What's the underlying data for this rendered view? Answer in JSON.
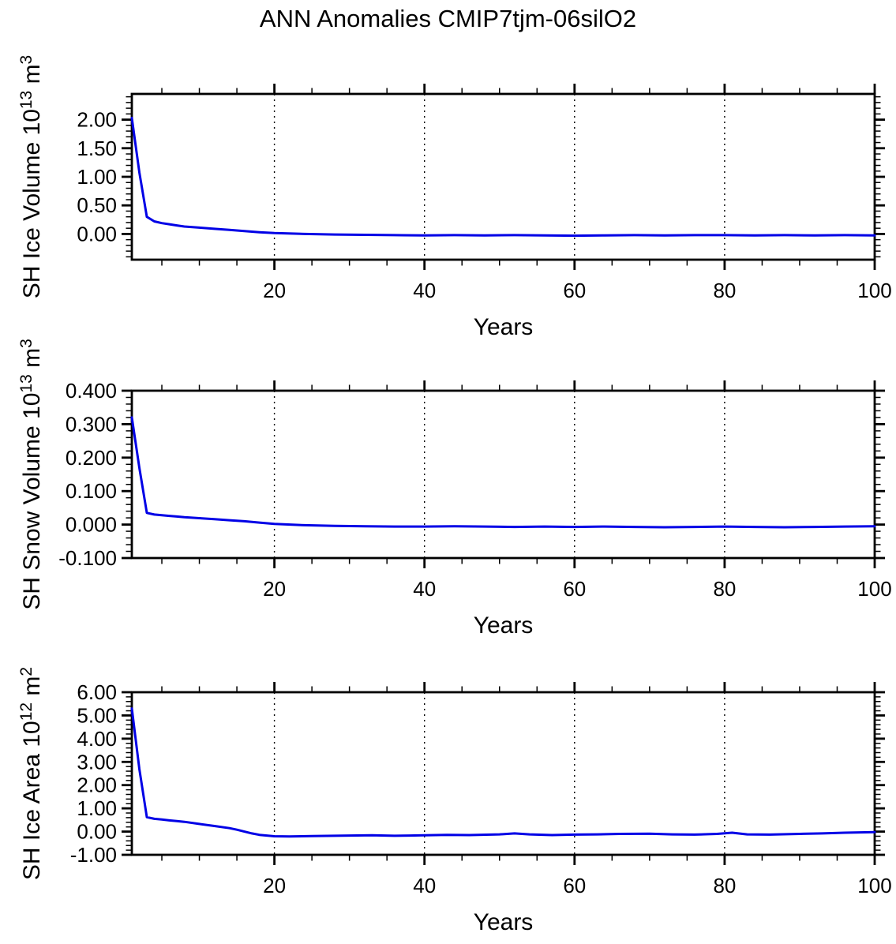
{
  "title": "ANN Anomalies CMIP7tjm-06silO2",
  "colors": {
    "line": "#0000e6",
    "frame": "#000000",
    "grid": "#000000",
    "background": "#ffffff"
  },
  "chart_data": [
    {
      "type": "line",
      "name": "sh-ice-volume-plot",
      "ylabel": "SH Ice Volume 10^13 m^3",
      "ylabel_parts": [
        {
          "t": "SH Ice Volume 10"
        },
        {
          "t": "13",
          "sup": true
        },
        {
          "t": " m"
        },
        {
          "t": "3",
          "sup": true
        }
      ],
      "xlabel": "Years",
      "xlim": [
        1,
        100
      ],
      "ylim": [
        -0.45,
        2.45
      ],
      "x_ticks": [
        {
          "v": 20,
          "label": "20"
        },
        {
          "v": 40,
          "label": "40"
        },
        {
          "v": 60,
          "label": "60"
        },
        {
          "v": 80,
          "label": "80"
        },
        {
          "v": 100,
          "label": "100"
        }
      ],
      "x_minor_step": 5,
      "y_ticks": [
        {
          "v": 2.0,
          "label": "2.00"
        },
        {
          "v": 1.5,
          "label": "1.50"
        },
        {
          "v": 1.0,
          "label": "1.00"
        },
        {
          "v": 0.5,
          "label": "0.50"
        },
        {
          "v": 0.0,
          "label": "0.00"
        }
      ],
      "y_minor_step": 0.1,
      "grid_x": [
        20,
        40,
        60,
        80,
        100
      ],
      "grid_style": "dashed",
      "series": {
        "name": "SH Ice Volume anomaly",
        "x": [
          1,
          2,
          3,
          4,
          5,
          6,
          7,
          8,
          10,
          12,
          14,
          16,
          18,
          20,
          24,
          28,
          32,
          36,
          40,
          44,
          48,
          52,
          56,
          60,
          64,
          68,
          72,
          76,
          80,
          84,
          88,
          92,
          96,
          100
        ],
        "y": [
          2.03,
          1.08,
          0.3,
          0.22,
          0.19,
          0.17,
          0.15,
          0.13,
          0.11,
          0.09,
          0.07,
          0.05,
          0.03,
          0.015,
          0.0,
          -0.01,
          -0.015,
          -0.02,
          -0.025,
          -0.02,
          -0.025,
          -0.02,
          -0.025,
          -0.03,
          -0.025,
          -0.02,
          -0.025,
          -0.02,
          -0.02,
          -0.025,
          -0.02,
          -0.025,
          -0.02,
          -0.025
        ]
      }
    },
    {
      "type": "line",
      "name": "sh-snow-volume-plot",
      "ylabel": "SH Snow Volume 10^13 m^3",
      "ylabel_parts": [
        {
          "t": "SH Snow Volume 10"
        },
        {
          "t": "13",
          "sup": true
        },
        {
          "t": " m"
        },
        {
          "t": "3",
          "sup": true
        }
      ],
      "xlabel": "Years",
      "xlim": [
        1,
        100
      ],
      "ylim": [
        -0.1,
        0.4
      ],
      "x_ticks": [
        {
          "v": 20,
          "label": "20"
        },
        {
          "v": 40,
          "label": "40"
        },
        {
          "v": 60,
          "label": "60"
        },
        {
          "v": 80,
          "label": "80"
        },
        {
          "v": 100,
          "label": "100"
        }
      ],
      "x_minor_step": 5,
      "y_ticks": [
        {
          "v": 0.4,
          "label": "0.400"
        },
        {
          "v": 0.3,
          "label": "0.300"
        },
        {
          "v": 0.2,
          "label": "0.200"
        },
        {
          "v": 0.1,
          "label": "0.100"
        },
        {
          "v": 0.0,
          "label": "0.000"
        },
        {
          "v": -0.1,
          "label": "-0.100"
        }
      ],
      "y_minor_step": 0.02,
      "grid_x": [
        20,
        40,
        60,
        80,
        100
      ],
      "grid_style": "dashed",
      "series": {
        "name": "SH Snow Volume anomaly",
        "x": [
          1,
          2,
          3,
          4,
          5,
          6,
          7,
          8,
          10,
          12,
          14,
          16,
          18,
          20,
          24,
          28,
          32,
          36,
          40,
          44,
          48,
          52,
          56,
          60,
          64,
          68,
          72,
          76,
          80,
          84,
          88,
          92,
          96,
          100
        ],
        "y": [
          0.32,
          0.17,
          0.035,
          0.03,
          0.028,
          0.026,
          0.024,
          0.022,
          0.019,
          0.016,
          0.013,
          0.01,
          0.006,
          0.002,
          -0.002,
          -0.004,
          -0.005,
          -0.006,
          -0.006,
          -0.005,
          -0.006,
          -0.007,
          -0.006,
          -0.007,
          -0.006,
          -0.007,
          -0.008,
          -0.007,
          -0.006,
          -0.007,
          -0.008,
          -0.007,
          -0.006,
          -0.005
        ]
      }
    },
    {
      "type": "line",
      "name": "sh-ice-area-plot",
      "ylabel": "SH Ice Area 10^12 m^2",
      "ylabel_parts": [
        {
          "t": "SH Ice Area 10"
        },
        {
          "t": "12",
          "sup": true
        },
        {
          "t": " m"
        },
        {
          "t": "2",
          "sup": true
        }
      ],
      "xlabel": "Years",
      "xlim": [
        1,
        100
      ],
      "ylim": [
        -1.0,
        6.0
      ],
      "x_ticks": [
        {
          "v": 20,
          "label": "20"
        },
        {
          "v": 40,
          "label": "40"
        },
        {
          "v": 60,
          "label": "60"
        },
        {
          "v": 80,
          "label": "80"
        },
        {
          "v": 100,
          "label": "100"
        }
      ],
      "x_minor_step": 5,
      "y_ticks": [
        {
          "v": 6.0,
          "label": "6.00"
        },
        {
          "v": 5.0,
          "label": "5.00"
        },
        {
          "v": 4.0,
          "label": "4.00"
        },
        {
          "v": 3.0,
          "label": "3.00"
        },
        {
          "v": 2.0,
          "label": "2.00"
        },
        {
          "v": 1.0,
          "label": "1.00"
        },
        {
          "v": 0.0,
          "label": "0.00"
        },
        {
          "v": -1.0,
          "label": "-1.00"
        }
      ],
      "y_minor_step": 0.2,
      "grid_x": [
        20,
        40,
        60,
        80,
        100
      ],
      "grid_style": "dashed",
      "series": {
        "name": "SH Ice Area anomaly",
        "x": [
          1,
          2,
          3,
          4,
          5,
          6,
          7,
          8,
          10,
          12,
          14,
          15,
          16,
          17,
          18,
          20,
          22,
          25,
          28,
          30,
          33,
          36,
          38,
          40,
          43,
          46,
          50,
          52,
          54,
          57,
          60,
          63,
          66,
          70,
          73,
          76,
          79,
          81,
          83,
          86,
          90,
          93,
          96,
          100
        ],
        "y": [
          5.3,
          2.7,
          0.62,
          0.55,
          0.52,
          0.48,
          0.45,
          0.42,
          0.33,
          0.24,
          0.15,
          0.08,
          0.0,
          -0.08,
          -0.14,
          -0.2,
          -0.21,
          -0.19,
          -0.18,
          -0.17,
          -0.16,
          -0.18,
          -0.17,
          -0.16,
          -0.14,
          -0.15,
          -0.12,
          -0.08,
          -0.12,
          -0.15,
          -0.13,
          -0.12,
          -0.1,
          -0.09,
          -0.12,
          -0.13,
          -0.1,
          -0.05,
          -0.12,
          -0.13,
          -0.1,
          -0.08,
          -0.05,
          -0.02
        ]
      }
    }
  ]
}
